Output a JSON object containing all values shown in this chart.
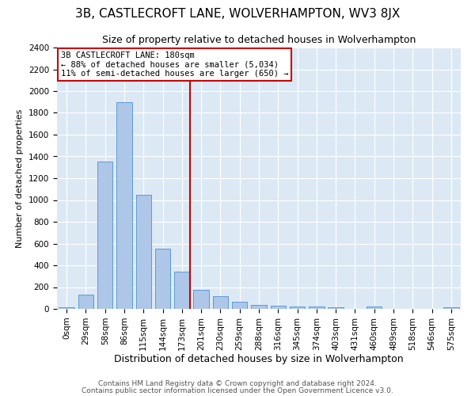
{
  "title": "3B, CASTLECROFT LANE, WOLVERHAMPTON, WV3 8JX",
  "subtitle": "Size of property relative to detached houses in Wolverhampton",
  "xlabel": "Distribution of detached houses by size in Wolverhampton",
  "ylabel": "Number of detached properties",
  "footnote1": "Contains HM Land Registry data © Crown copyright and database right 2024.",
  "footnote2": "Contains public sector information licensed under the Open Government Licence v3.0.",
  "categories": [
    "0sqm",
    "29sqm",
    "58sqm",
    "86sqm",
    "115sqm",
    "144sqm",
    "173sqm",
    "201sqm",
    "230sqm",
    "259sqm",
    "288sqm",
    "316sqm",
    "345sqm",
    "374sqm",
    "403sqm",
    "431sqm",
    "460sqm",
    "489sqm",
    "518sqm",
    "546sqm",
    "575sqm"
  ],
  "values": [
    15,
    130,
    1350,
    1900,
    1050,
    550,
    340,
    175,
    115,
    65,
    40,
    30,
    25,
    20,
    12,
    0,
    20,
    0,
    0,
    0,
    15
  ],
  "bar_color": "#aec6e8",
  "bar_edge_color": "#5b9bd5",
  "property_label": "3B CASTLECROFT LANE: 180sqm",
  "pct_smaller": 88,
  "n_smaller": 5034,
  "pct_larger": 11,
  "n_larger": 650,
  "vline_color": "#cc0000",
  "annotation_box_color": "#cc0000",
  "plot_bg_color": "#dce9f5",
  "ylim": [
    0,
    2400
  ],
  "property_bin_index": 6,
  "title_fontsize": 11,
  "subtitle_fontsize": 9,
  "xlabel_fontsize": 9,
  "ylabel_fontsize": 8,
  "tick_fontsize": 7.5,
  "annotation_fontsize": 7.5,
  "footnote_fontsize": 6.5
}
